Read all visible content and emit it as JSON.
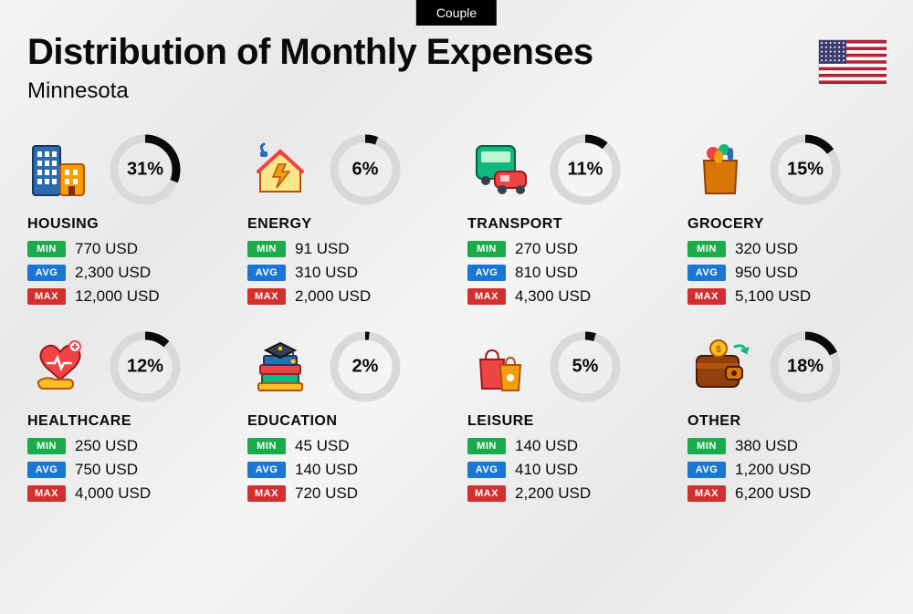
{
  "tab_label": "Couple",
  "title": "Distribution of Monthly Expenses",
  "subtitle": "Minnesota",
  "flag": {
    "stripe_colors": [
      "#B22234",
      "#FFFFFF"
    ],
    "canton_color": "#3C3B6E",
    "star_color": "#FFFFFF"
  },
  "donut": {
    "track_color": "#d9d9d9",
    "fill_color": "#0a0a0a",
    "stroke_width": 9,
    "radius": 34
  },
  "badges": {
    "min": {
      "label": "MIN",
      "bg": "#1aab4a"
    },
    "avg": {
      "label": "AVG",
      "bg": "#1976d2"
    },
    "max": {
      "label": "MAX",
      "bg": "#d32f2f"
    }
  },
  "currency_suffix": " USD",
  "categories": [
    {
      "key": "housing",
      "name": "HOUSING",
      "pct": 31,
      "min": "770",
      "avg": "2,300",
      "max": "12,000",
      "icon": "buildings"
    },
    {
      "key": "energy",
      "name": "ENERGY",
      "pct": 6,
      "min": "91",
      "avg": "310",
      "max": "2,000",
      "icon": "energy-house"
    },
    {
      "key": "transport",
      "name": "TRANSPORT",
      "pct": 11,
      "min": "270",
      "avg": "810",
      "max": "4,300",
      "icon": "bus-car"
    },
    {
      "key": "grocery",
      "name": "GROCERY",
      "pct": 15,
      "min": "320",
      "avg": "950",
      "max": "5,100",
      "icon": "grocery-bag"
    },
    {
      "key": "healthcare",
      "name": "HEALTHCARE",
      "pct": 12,
      "min": "250",
      "avg": "750",
      "max": "4,000",
      "icon": "heart-hand"
    },
    {
      "key": "education",
      "name": "EDUCATION",
      "pct": 2,
      "min": "45",
      "avg": "140",
      "max": "720",
      "icon": "grad-books"
    },
    {
      "key": "leisure",
      "name": "LEISURE",
      "pct": 5,
      "min": "140",
      "avg": "410",
      "max": "2,200",
      "icon": "shopping-bags"
    },
    {
      "key": "other",
      "name": "OTHER",
      "pct": 18,
      "min": "380",
      "avg": "1,200",
      "max": "6,200",
      "icon": "wallet"
    }
  ]
}
